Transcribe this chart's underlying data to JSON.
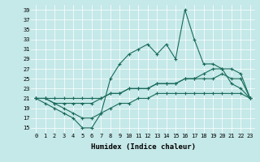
{
  "xlabel": "Humidex (Indice chaleur)",
  "xlim": [
    -0.5,
    23.5
  ],
  "ylim": [
    14,
    40
  ],
  "yticks": [
    15,
    17,
    19,
    21,
    23,
    25,
    27,
    29,
    31,
    33,
    35,
    37,
    39
  ],
  "xticks": [
    0,
    1,
    2,
    3,
    4,
    5,
    6,
    7,
    8,
    9,
    10,
    11,
    12,
    13,
    14,
    15,
    16,
    17,
    18,
    19,
    20,
    21,
    22,
    23
  ],
  "bg_color": "#c5e8e8",
  "line_color": "#1a6b5a",
  "line1_y": [
    21,
    20,
    19,
    18,
    17,
    15,
    15,
    18,
    25,
    28,
    30,
    31,
    32,
    30,
    32,
    29,
    39,
    33,
    28,
    28,
    27,
    24,
    23,
    21
  ],
  "line2_y": [
    21,
    21,
    21,
    21,
    21,
    21,
    21,
    21,
    22,
    22,
    23,
    23,
    23,
    24,
    24,
    24,
    25,
    25,
    26,
    27,
    27,
    27,
    26,
    21
  ],
  "line3_y": [
    21,
    21,
    20,
    20,
    20,
    20,
    20,
    21,
    22,
    22,
    23,
    23,
    23,
    24,
    24,
    24,
    25,
    25,
    25,
    25,
    26,
    25,
    25,
    21
  ],
  "line4_y": [
    21,
    21,
    20,
    19,
    18,
    17,
    17,
    18,
    19,
    20,
    20,
    21,
    21,
    22,
    22,
    22,
    22,
    22,
    22,
    22,
    22,
    22,
    22,
    21
  ]
}
